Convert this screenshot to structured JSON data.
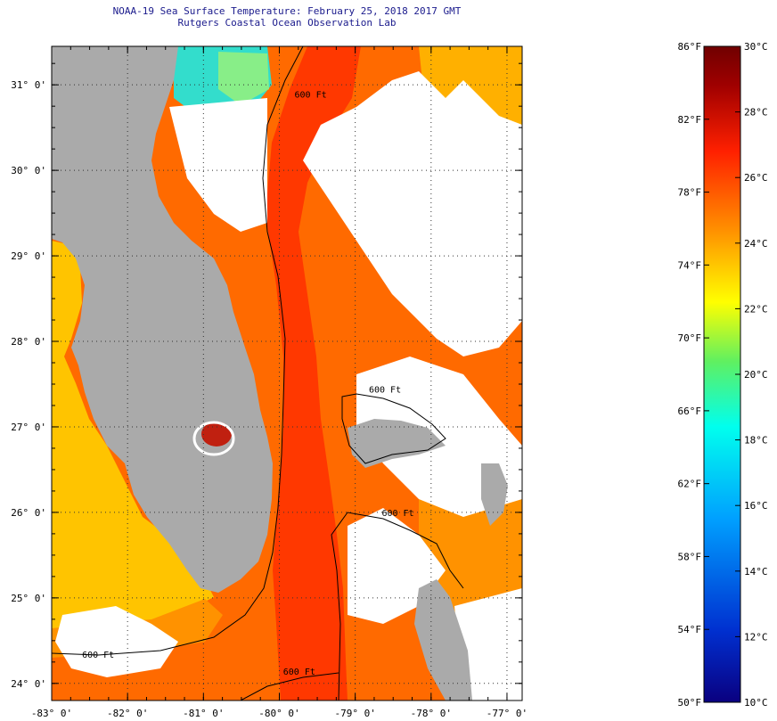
{
  "header": {
    "title": "NOAA-19 Sea Surface Temperature:  February 25, 2018 2017 GMT",
    "subtitle": "Rutgers Coastal Ocean Observation Lab"
  },
  "map": {
    "lon_range": [
      -83,
      -76.8
    ],
    "lat_range": [
      23.8,
      31.45
    ],
    "lon_ticks": [
      {
        "value": -83,
        "label": "-83° 0'"
      },
      {
        "value": -82,
        "label": "-82° 0'"
      },
      {
        "value": -81,
        "label": "-81° 0'"
      },
      {
        "value": -80,
        "label": "-80° 0'"
      },
      {
        "value": -79,
        "label": "-79° 0'"
      },
      {
        "value": -78,
        "label": "-78° 0'"
      },
      {
        "value": -77,
        "label": "-77° 0'"
      }
    ],
    "lat_ticks": [
      {
        "value": 31,
        "label": "31° 0'"
      },
      {
        "value": 30,
        "label": "30° 0'"
      },
      {
        "value": 29,
        "label": "29° 0'"
      },
      {
        "value": 28,
        "label": "28° 0'"
      },
      {
        "value": 27,
        "label": "27° 0'"
      },
      {
        "value": 26,
        "label": "26° 0'"
      },
      {
        "value": 25,
        "label": "25° 0'"
      },
      {
        "value": 24,
        "label": "24° 0'"
      }
    ],
    "isobath_labels": [
      {
        "text": "600 Ft",
        "lon": -79.8,
        "lat": 30.85
      },
      {
        "text": "600 Ft",
        "lon": -78.82,
        "lat": 27.4
      },
      {
        "text": "600 Ft",
        "lon": -78.65,
        "lat": 25.96
      },
      {
        "text": "600 Ft",
        "lon": -82.6,
        "lat": 24.3
      },
      {
        "text": "600 Ft",
        "lon": -79.95,
        "lat": 24.1
      }
    ],
    "colors": {
      "land": "#aaaaaa",
      "cloud": "#ffffff",
      "gulf_stream": "#ff3800",
      "warm": "#ff6a00",
      "mid": "#ff9200",
      "cool": "#ffb000",
      "gulf": "#ffc400",
      "cold_a": "#33ddcc",
      "cold_b": "#88ee88",
      "lake": "#c02010"
    }
  },
  "colorbar": {
    "f_ticks": [
      {
        "value": 86,
        "label": "86°F"
      },
      {
        "value": 82,
        "label": "82°F"
      },
      {
        "value": 78,
        "label": "78°F"
      },
      {
        "value": 74,
        "label": "74°F"
      },
      {
        "value": 70,
        "label": "70°F"
      },
      {
        "value": 66,
        "label": "66°F"
      },
      {
        "value": 62,
        "label": "62°F"
      },
      {
        "value": 58,
        "label": "58°F"
      },
      {
        "value": 54,
        "label": "54°F"
      },
      {
        "value": 50,
        "label": "50°F"
      }
    ],
    "c_ticks": [
      {
        "value": 30,
        "label": "30°C"
      },
      {
        "value": 28,
        "label": "28°C"
      },
      {
        "value": 26,
        "label": "26°C"
      },
      {
        "value": 24,
        "label": "24°C"
      },
      {
        "value": 22,
        "label": "22°C"
      },
      {
        "value": 20,
        "label": "20°C"
      },
      {
        "value": 18,
        "label": "18°C"
      },
      {
        "value": 16,
        "label": "16°C"
      },
      {
        "value": 14,
        "label": "14°C"
      },
      {
        "value": 12,
        "label": "12°C"
      },
      {
        "value": 10,
        "label": "10°C"
      }
    ],
    "stops": [
      "#0a0080",
      "#0030d0",
      "#00a0ff",
      "#00ffee",
      "#60f060",
      "#ffff00",
      "#ff9000",
      "#ff2000",
      "#a00000",
      "#700000"
    ]
  }
}
